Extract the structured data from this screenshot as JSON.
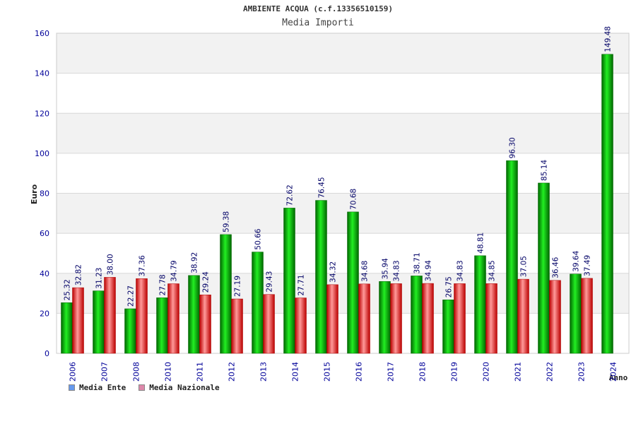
{
  "chart_data": {
    "type": "bar",
    "title": "AMBIENTE ACQUA (c.f.13356510159)",
    "subtitle": "Media Importi",
    "ylabel": "Euro",
    "xlabel": "Anno",
    "ylim": [
      0,
      160
    ],
    "yticks": [
      0,
      20,
      40,
      60,
      80,
      100,
      120,
      140,
      160
    ],
    "categories": [
      "2006",
      "2007",
      "2008",
      "2010",
      "2011",
      "2012",
      "2013",
      "2014",
      "2015",
      "2016",
      "2017",
      "2018",
      "2019",
      "2020",
      "2021",
      "2022",
      "2023",
      "2024"
    ],
    "series": [
      {
        "name": "Media Ente",
        "color": "#00aa00",
        "legend_color": "#6699ee",
        "values": [
          25.32,
          31.23,
          22.27,
          27.78,
          38.92,
          59.38,
          50.66,
          72.62,
          76.45,
          70.68,
          35.94,
          38.71,
          26.75,
          48.81,
          96.3,
          85.14,
          39.64,
          149.48
        ],
        "labels": [
          "25.32",
          "31.23",
          "22.27",
          "27.78",
          "38.92",
          "59.38",
          "50.66",
          "72.62",
          "76.45",
          "70.68",
          "35.94",
          "38.71",
          "26.75",
          "48.81",
          "96.30",
          "85.14",
          "39.64",
          "149.48"
        ]
      },
      {
        "name": "Media Nazionale",
        "color": "#ee2222",
        "legend_color": "#dd88aa",
        "values": [
          32.82,
          38.0,
          37.36,
          34.79,
          29.24,
          27.19,
          29.43,
          27.71,
          34.32,
          34.68,
          34.83,
          34.94,
          34.83,
          34.85,
          37.05,
          36.46,
          37.49,
          null
        ],
        "labels": [
          "32.82",
          "38.00",
          "37.36",
          "34.79",
          "29.24",
          "27.19",
          "29.43",
          "27.71",
          "34.32",
          "34.68",
          "34.83",
          "34.94",
          "34.83",
          "34.85",
          "37.05",
          "36.46",
          "37.49",
          null
        ]
      }
    ],
    "grid": true,
    "legend_position": "bottom-left"
  }
}
